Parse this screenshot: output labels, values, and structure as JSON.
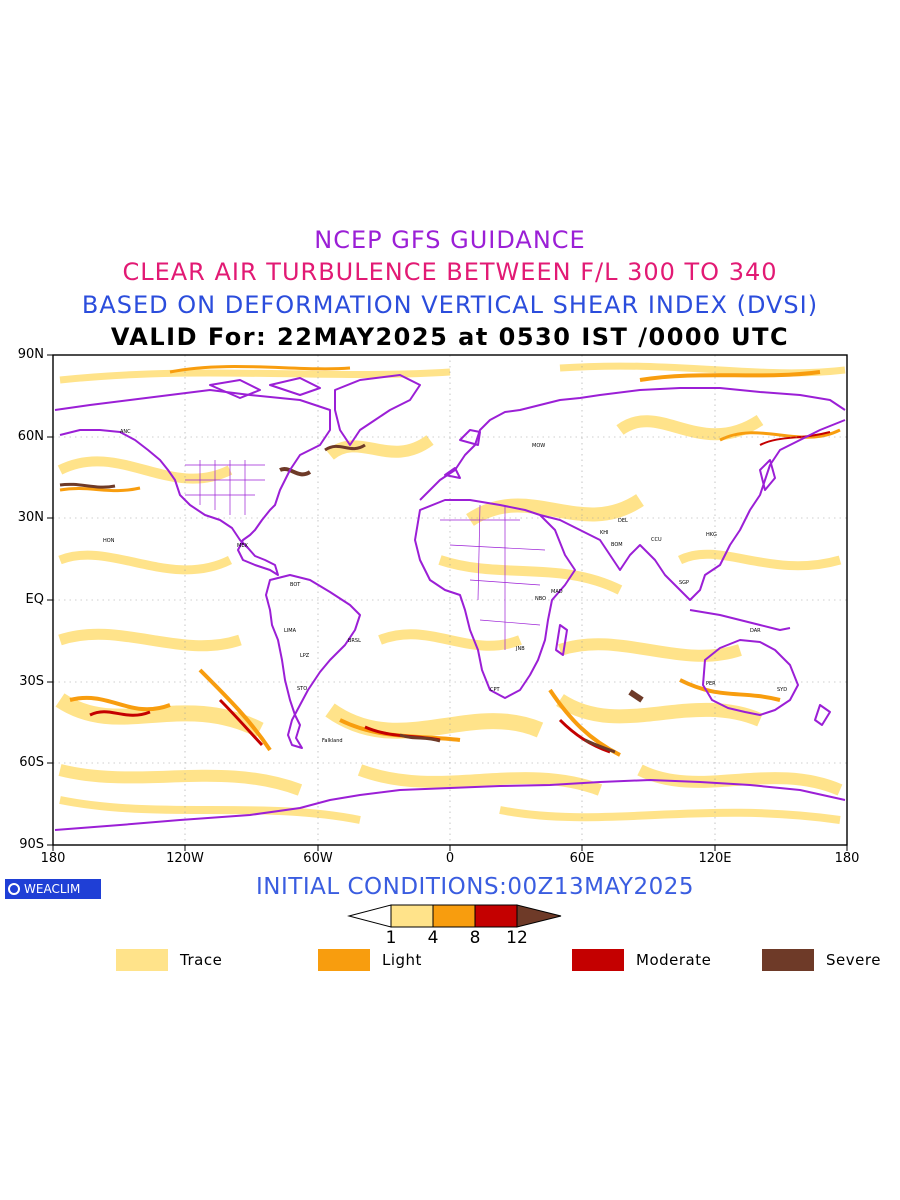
{
  "titles": {
    "line1": {
      "text": "NCEP GFS GUIDANCE",
      "color": "#9b1fd6"
    },
    "line2": {
      "text": "CLEAR AIR TURBULENCE BETWEEN F/L 300 TO 340",
      "color": "#e21a74"
    },
    "line3": {
      "text": "BASED ON DEFORMATION VERTICAL SHEAR INDEX (DVSI)",
      "color": "#2b4ddc"
    },
    "line4": {
      "text": "VALID For: 22MAY2025 at 0530 IST /0000 UTC",
      "color": "#000000"
    }
  },
  "map": {
    "lat_labels": [
      "90N",
      "60N",
      "30N",
      "EQ",
      "30S",
      "60S",
      "90S"
    ],
    "lon_labels": [
      "180",
      "120W",
      "60W",
      "0",
      "60E",
      "120E",
      "180"
    ],
    "coastline_color": "#9b1fd6",
    "station_labels": [
      "ANC",
      "HON",
      "MEX",
      "BOT",
      "LIMA",
      "LPZ",
      "STO",
      "BRSL",
      "Falkland",
      "MOW",
      "KHI",
      "DEL",
      "BOM",
      "MAD",
      "CCU",
      "SGP",
      "HKG",
      "SYD",
      "DAR",
      "PER",
      "NBO",
      "JNB",
      "CPT"
    ]
  },
  "badge": {
    "text": "WEACLIM",
    "icon": "copyright-icon"
  },
  "initial_conditions": {
    "text": "INITIAL CONDITIONS:00Z13MAY2025",
    "color": "#3a5de0"
  },
  "colorbar": {
    "values": [
      "1",
      "4",
      "8",
      "12"
    ],
    "colors": [
      "#ffe38a",
      "#f89d0e",
      "#c40000",
      "#6e3a28"
    ]
  },
  "legend": [
    {
      "label": "Trace",
      "color": "#ffe38a"
    },
    {
      "label": "Light",
      "color": "#f89d0e"
    },
    {
      "label": "Moderate",
      "color": "#c40000"
    },
    {
      "label": "Severe",
      "color": "#6e3a28"
    }
  ]
}
